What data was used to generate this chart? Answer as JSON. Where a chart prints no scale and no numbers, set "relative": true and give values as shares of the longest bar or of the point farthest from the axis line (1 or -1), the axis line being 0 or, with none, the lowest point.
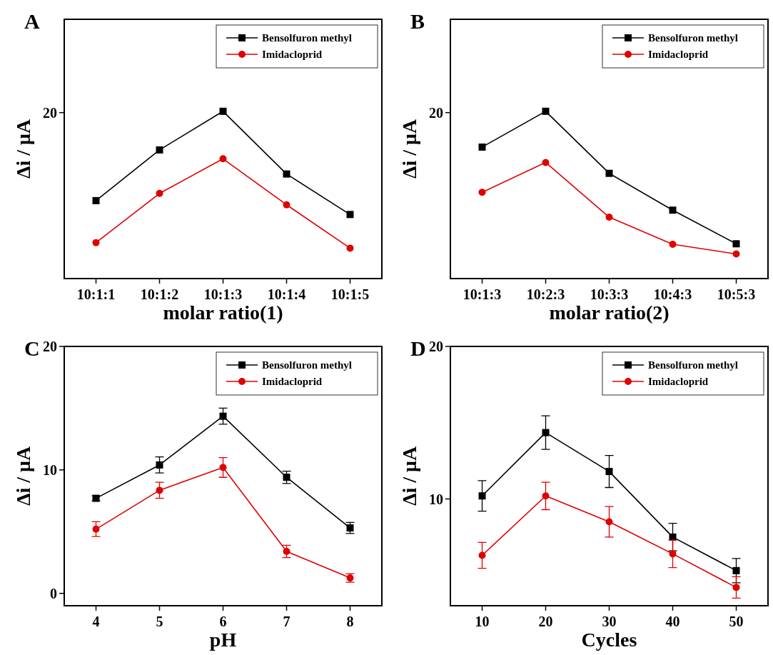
{
  "chart_data": [
    {
      "type": "line",
      "title": "A",
      "xlabel": "molar ratio(1)",
      "ylabel": "Δi / μA",
      "relative": true,
      "legend": "top right",
      "categories": [
        "10:1:1",
        "10:1:2",
        "10:1:3",
        "10:1:4",
        "10:1:5"
      ],
      "annotations": [
        "20"
      ],
      "series": [
        {
          "name": "Bensolfuron methyl",
          "color": "#000000",
          "marker": "square",
          "values": [
            0.466,
            0.769,
            1,
            0.625,
            0.383
          ]
        },
        {
          "name": "Imidacloprid",
          "color": "#e00000",
          "marker": "circle",
          "values": [
            0.215,
            0.509,
            0.716,
            0.441,
            0.182
          ]
        }
      ]
    },
    {
      "type": "line",
      "title": "B",
      "xlabel": "molar ratio(2)",
      "ylabel": "Δi / μA",
      "relative": true,
      "legend": "top right",
      "categories": [
        "10:1:3",
        "10:2:3",
        "10:3:3",
        "10:4:3",
        "10:5:3"
      ],
      "annotations": [
        "20"
      ],
      "series": [
        {
          "name": "Bensolfuron methyl",
          "color": "#000000",
          "marker": "square",
          "values": [
            0.786,
            1,
            0.629,
            0.409,
            0.208
          ]
        },
        {
          "name": "Imidacloprid",
          "color": "#e00000",
          "marker": "circle",
          "values": [
            0.516,
            0.694,
            0.367,
            0.205,
            0.147
          ]
        }
      ]
    },
    {
      "type": "line",
      "title": "C",
      "xlabel": "pH",
      "ylabel": "Δi / μA",
      "legend": "top right",
      "x": [
        4,
        5,
        6,
        7,
        8
      ],
      "xlim": [
        3.5,
        8.5
      ],
      "xticks": [
        4,
        5,
        6,
        7,
        8
      ],
      "ylim": [
        -1,
        20
      ],
      "yticks": [
        0,
        10,
        20
      ],
      "series": [
        {
          "name": "Bensolfuron methyl",
          "color": "#000000",
          "marker": "square",
          "values": [
            7.7,
            10.4,
            14.35,
            9.4,
            5.3
          ],
          "errors": [
            0.2,
            0.65,
            0.65,
            0.5,
            0.45
          ]
        },
        {
          "name": "Imidacloprid",
          "color": "#e00000",
          "marker": "circle",
          "values": [
            5.2,
            8.35,
            10.2,
            3.4,
            1.25
          ],
          "errors": [
            0.6,
            0.65,
            0.8,
            0.5,
            0.35
          ]
        }
      ]
    },
    {
      "type": "line",
      "title": "D",
      "xlabel": "Cycles",
      "ylabel": "Δi / μA",
      "legend": "top right",
      "x": [
        10,
        20,
        30,
        40,
        50
      ],
      "xlim": [
        5,
        55
      ],
      "xticks": [
        10,
        20,
        30,
        40,
        50
      ],
      "ylim": [
        3,
        20
      ],
      "yticks": [
        10,
        20
      ],
      "series": [
        {
          "name": "Bensolfuron methyl",
          "color": "#000000",
          "marker": "square",
          "values": [
            10.2,
            14.35,
            11.8,
            7.5,
            5.3
          ],
          "errors": [
            1.0,
            1.1,
            1.05,
            0.9,
            0.8
          ]
        },
        {
          "name": "Imidacloprid",
          "color": "#e00000",
          "marker": "circle",
          "values": [
            6.3,
            10.2,
            8.5,
            6.4,
            4.2
          ],
          "errors": [
            0.85,
            0.9,
            1.0,
            0.9,
            0.7
          ]
        }
      ]
    }
  ]
}
